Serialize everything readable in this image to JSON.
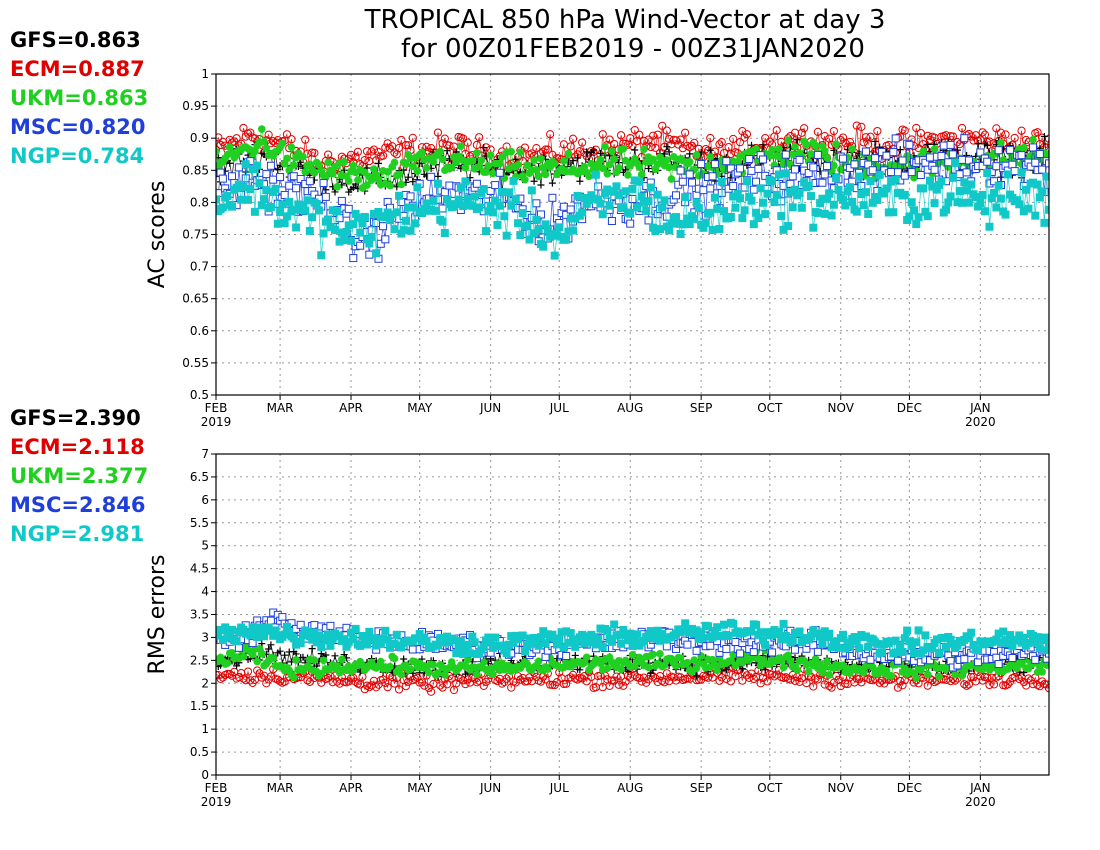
{
  "title_line1": "TROPICAL 850 hPa Wind-Vector at day 3",
  "title_line2": "for 00Z01FEB2019 - 00Z31JAN2020",
  "colors": {
    "GFS": "#000000",
    "ECM": "#e00000",
    "UKM": "#20d020",
    "MSC": "#1f3fd8",
    "NGP": "#10c8c8"
  },
  "months": [
    "FEB",
    "MAR",
    "APR",
    "MAY",
    "JUN",
    "JUL",
    "AUG",
    "SEP",
    "OCT",
    "NOV",
    "DEC",
    "JAN"
  ],
  "year_labels": [
    "2019",
    "2020"
  ],
  "chart_data": [
    {
      "type": "scatter",
      "ylabel": "AC scores",
      "ylim": [
        0.5,
        1
      ],
      "yticks": [
        "0.5",
        "0.55",
        "0.6",
        "0.65",
        "0.7",
        "0.75",
        "0.8",
        "0.85",
        "0.9",
        "0.95",
        "1"
      ],
      "xlim": [
        "2019-02-01",
        "2020-01-31"
      ],
      "grid": true,
      "legend_position": "left",
      "legend": [
        {
          "label": "GFS=0.863",
          "model": "GFS"
        },
        {
          "label": "ECM=0.887",
          "model": "ECM"
        },
        {
          "label": "UKM=0.863",
          "model": "UKM"
        },
        {
          "label": "MSC=0.820",
          "model": "MSC"
        },
        {
          "label": "NGP=0.784",
          "model": "NGP"
        }
      ],
      "series": [
        {
          "model": "ECM",
          "marker": "open-circle",
          "mean": 0.887,
          "anchors": [
            [
              0,
              0.88
            ],
            [
              15,
              0.905
            ],
            [
              30,
              0.89
            ],
            [
              45,
              0.86
            ],
            [
              75,
              0.875
            ],
            [
              100,
              0.885
            ],
            [
              130,
              0.87
            ],
            [
              160,
              0.88
            ],
            [
              190,
              0.895
            ],
            [
              220,
              0.875
            ],
            [
              245,
              0.9
            ],
            [
              270,
              0.895
            ],
            [
              300,
              0.89
            ],
            [
              330,
              0.9
            ],
            [
              364,
              0.89
            ]
          ],
          "scatter": 0.02
        },
        {
          "model": "GFS",
          "marker": "plus",
          "mean": 0.863,
          "anchors": [
            [
              0,
              0.85
            ],
            [
              20,
              0.875
            ],
            [
              45,
              0.84
            ],
            [
              70,
              0.83
            ],
            [
              100,
              0.86
            ],
            [
              130,
              0.85
            ],
            [
              160,
              0.86
            ],
            [
              190,
              0.865
            ],
            [
              220,
              0.86
            ],
            [
              250,
              0.87
            ],
            [
              280,
              0.865
            ],
            [
              310,
              0.875
            ],
            [
              340,
              0.87
            ],
            [
              364,
              0.87
            ]
          ],
          "scatter": 0.022
        },
        {
          "model": "UKM",
          "marker": "filled-circle",
          "mean": 0.863,
          "anchors": [
            [
              0,
              0.86
            ],
            [
              20,
              0.895
            ],
            [
              35,
              0.86
            ],
            [
              60,
              0.84
            ],
            [
              75,
              0.835
            ],
            [
              95,
              0.87
            ],
            [
              120,
              0.855
            ],
            [
              150,
              0.85
            ],
            [
              175,
              0.86
            ],
            [
              200,
              0.855
            ],
            [
              230,
              0.865
            ],
            [
              255,
              0.88
            ],
            [
              280,
              0.86
            ],
            [
              305,
              0.86
            ],
            [
              325,
              0.865
            ],
            [
              345,
              0.87
            ],
            [
              364,
              0.875
            ]
          ],
          "scatter": 0.02
        },
        {
          "model": "MSC",
          "marker": "open-square",
          "mean": 0.82,
          "anchors": [
            [
              0,
              0.81
            ],
            [
              15,
              0.84
            ],
            [
              30,
              0.82
            ],
            [
              50,
              0.8
            ],
            [
              60,
              0.74
            ],
            [
              70,
              0.75
            ],
            [
              85,
              0.8
            ],
            [
              105,
              0.81
            ],
            [
              130,
              0.8
            ],
            [
              145,
              0.76
            ],
            [
              160,
              0.8
            ],
            [
              185,
              0.8
            ],
            [
              210,
              0.82
            ],
            [
              235,
              0.84
            ],
            [
              255,
              0.84
            ],
            [
              280,
              0.85
            ],
            [
              305,
              0.86
            ],
            [
              330,
              0.865
            ],
            [
              350,
              0.86
            ],
            [
              364,
              0.86
            ]
          ],
          "scatter": 0.03
        },
        {
          "model": "NGP",
          "marker": "filled-square",
          "mean": 0.784,
          "anchors": [
            [
              0,
              0.8
            ],
            [
              15,
              0.83
            ],
            [
              30,
              0.79
            ],
            [
              45,
              0.77
            ],
            [
              60,
              0.75
            ],
            [
              75,
              0.77
            ],
            [
              90,
              0.79
            ],
            [
              110,
              0.8
            ],
            [
              125,
              0.79
            ],
            [
              140,
              0.77
            ],
            [
              150,
              0.74
            ],
            [
              165,
              0.8
            ],
            [
              185,
              0.81
            ],
            [
              200,
              0.77
            ],
            [
              215,
              0.78
            ],
            [
              230,
              0.8
            ],
            [
              245,
              0.81
            ],
            [
              260,
              0.8
            ],
            [
              280,
              0.81
            ],
            [
              300,
              0.8
            ],
            [
              320,
              0.82
            ],
            [
              335,
              0.8
            ],
            [
              350,
              0.81
            ],
            [
              364,
              0.81
            ]
          ],
          "scatter": 0.035
        }
      ]
    },
    {
      "type": "scatter",
      "ylabel": "RMS errors",
      "ylim": [
        0,
        7
      ],
      "yticks": [
        "0",
        "0.5",
        "1",
        "1.5",
        "2",
        "2.5",
        "3",
        "3.5",
        "4",
        "4.5",
        "5",
        "5.5",
        "6",
        "6.5",
        "7"
      ],
      "xlim": [
        "2019-02-01",
        "2020-01-31"
      ],
      "grid": true,
      "legend_position": "left",
      "legend": [
        {
          "label": "GFS=2.390",
          "model": "GFS"
        },
        {
          "label": "ECM=2.118",
          "model": "ECM"
        },
        {
          "label": "UKM=2.377",
          "model": "UKM"
        },
        {
          "label": "MSC=2.846",
          "model": "MSC"
        },
        {
          "label": "NGP=2.981",
          "model": "NGP"
        }
      ],
      "series": [
        {
          "model": "ECM",
          "marker": "open-circle",
          "mean": 2.118,
          "anchors": [
            [
              0,
              2.2
            ],
            [
              30,
              2.15
            ],
            [
              60,
              2.05
            ],
            [
              90,
              2.0
            ],
            [
              120,
              2.05
            ],
            [
              150,
              2.1
            ],
            [
              180,
              2.1
            ],
            [
              210,
              2.15
            ],
            [
              240,
              2.15
            ],
            [
              270,
              2.1
            ],
            [
              300,
              2.05
            ],
            [
              330,
              2.1
            ],
            [
              364,
              2.1
            ]
          ],
          "scatter": 0.15
        },
        {
          "model": "GFS",
          "marker": "plus",
          "mean": 2.39,
          "anchors": [
            [
              0,
              2.45
            ],
            [
              20,
              2.7
            ],
            [
              40,
              2.5
            ],
            [
              70,
              2.4
            ],
            [
              100,
              2.35
            ],
            [
              130,
              2.4
            ],
            [
              160,
              2.45
            ],
            [
              190,
              2.45
            ],
            [
              220,
              2.4
            ],
            [
              250,
              2.5
            ],
            [
              280,
              2.35
            ],
            [
              310,
              2.35
            ],
            [
              340,
              2.4
            ],
            [
              364,
              2.45
            ]
          ],
          "scatter": 0.18
        },
        {
          "model": "UKM",
          "marker": "filled-circle",
          "mean": 2.377,
          "anchors": [
            [
              0,
              2.5
            ],
            [
              15,
              2.65
            ],
            [
              30,
              2.3
            ],
            [
              60,
              2.4
            ],
            [
              90,
              2.35
            ],
            [
              120,
              2.3
            ],
            [
              150,
              2.4
            ],
            [
              180,
              2.45
            ],
            [
              210,
              2.45
            ],
            [
              240,
              2.55
            ],
            [
              270,
              2.35
            ],
            [
              300,
              2.3
            ],
            [
              330,
              2.35
            ],
            [
              364,
              2.4
            ]
          ],
          "scatter": 0.15
        },
        {
          "model": "MSC",
          "marker": "open-square",
          "mean": 2.846,
          "anchors": [
            [
              0,
              2.9
            ],
            [
              15,
              3.1
            ],
            [
              25,
              3.4
            ],
            [
              40,
              3.1
            ],
            [
              70,
              2.95
            ],
            [
              100,
              2.85
            ],
            [
              130,
              2.8
            ],
            [
              160,
              2.85
            ],
            [
              190,
              2.95
            ],
            [
              220,
              2.9
            ],
            [
              245,
              2.85
            ],
            [
              265,
              2.9
            ],
            [
              285,
              2.65
            ],
            [
              310,
              2.6
            ],
            [
              340,
              2.6
            ],
            [
              364,
              2.7
            ]
          ],
          "scatter": 0.2
        },
        {
          "model": "NGP",
          "marker": "filled-square",
          "mean": 2.981,
          "anchors": [
            [
              0,
              3.0
            ],
            [
              15,
              3.2
            ],
            [
              30,
              3.05
            ],
            [
              60,
              3.0
            ],
            [
              90,
              2.9
            ],
            [
              120,
              2.85
            ],
            [
              150,
              2.95
            ],
            [
              180,
              3.0
            ],
            [
              210,
              3.1
            ],
            [
              240,
              3.1
            ],
            [
              265,
              3.05
            ],
            [
              285,
              2.85
            ],
            [
              310,
              2.85
            ],
            [
              330,
              2.9
            ],
            [
              350,
              2.95
            ],
            [
              364,
              2.85
            ]
          ],
          "scatter": 0.2
        }
      ]
    }
  ]
}
